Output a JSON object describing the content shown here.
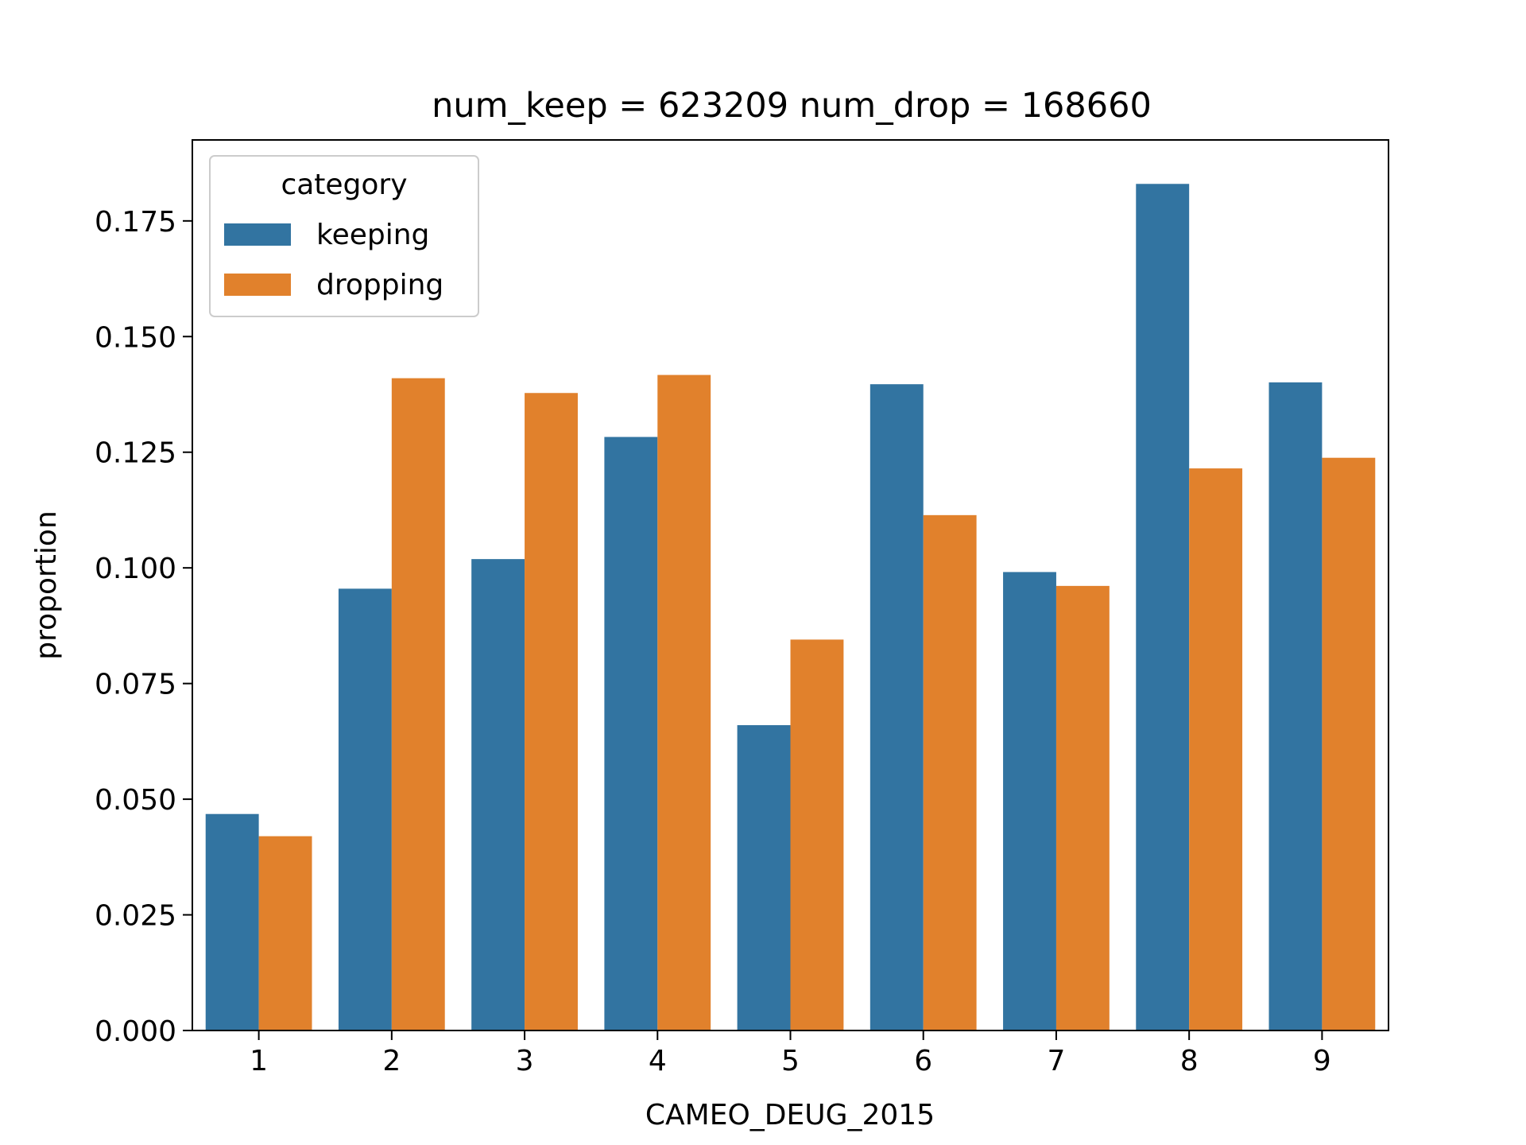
{
  "chart_data": {
    "type": "bar",
    "title": "num_keep = 623209  num_drop = 168660",
    "xlabel": "CAMEO_DEUG_2015",
    "ylabel": "proportion",
    "categories": [
      "1",
      "2",
      "3",
      "4",
      "5",
      "6",
      "7",
      "8",
      "9"
    ],
    "ylim": [
      0,
      0.1925
    ],
    "yticks": [
      "0.000",
      "0.025",
      "0.050",
      "0.075",
      "0.100",
      "0.125",
      "0.150",
      "0.175"
    ],
    "grid": false,
    "legend": {
      "title": "category",
      "placement": "upper-left"
    },
    "series": [
      {
        "name": "keeping",
        "color": "#3274a1",
        "values": [
          0.0468,
          0.0955,
          0.1019,
          0.1283,
          0.066,
          0.1397,
          0.0991,
          0.183,
          0.1401
        ]
      },
      {
        "name": "dropping",
        "color": "#e1812c",
        "values": [
          0.042,
          0.141,
          0.1378,
          0.1417,
          0.0845,
          0.1114,
          0.0961,
          0.1215,
          0.1238
        ]
      }
    ]
  }
}
